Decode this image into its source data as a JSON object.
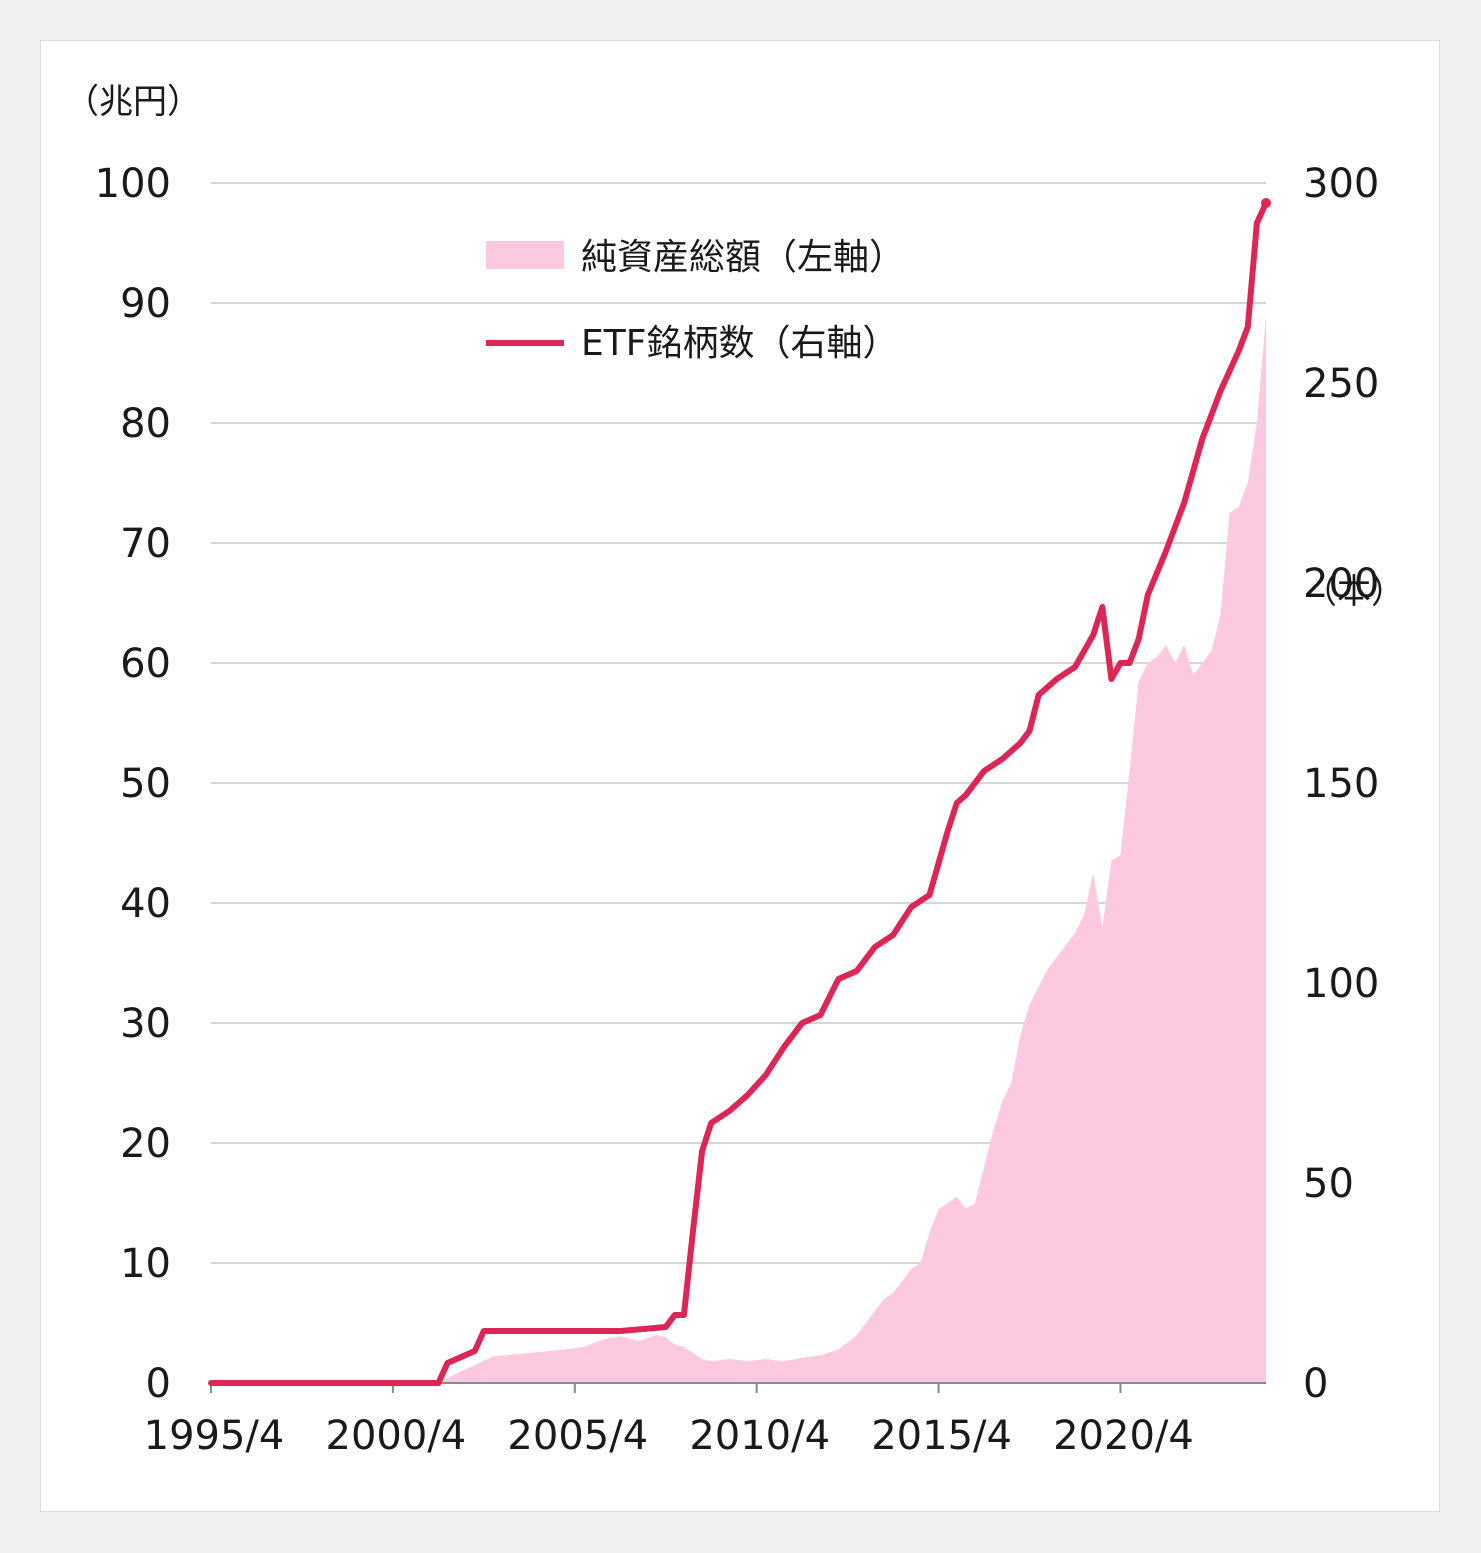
{
  "chart_data": {
    "type": "area+line",
    "title": "",
    "left_axis": {
      "unit_label": "（兆円）",
      "ylim": [
        0,
        100
      ],
      "ticks": [
        "0",
        "10",
        "20",
        "30",
        "40",
        "50",
        "60",
        "70",
        "80",
        "90",
        "100"
      ]
    },
    "right_axis": {
      "unit_label": "（本）",
      "ylim": [
        0,
        300
      ],
      "ticks": [
        "0",
        "50",
        "100",
        "150",
        "200",
        "250",
        "300"
      ]
    },
    "x_axis": {
      "ticks": [
        "1995/4",
        "2000/4",
        "2005/4",
        "2010/4",
        "2015/4",
        "2020/4"
      ]
    },
    "grid": "horizontal",
    "legend": {
      "placement": "top-center",
      "items": [
        {
          "label": "純資産総額（左軸）",
          "style": "area",
          "color": "#fcc9df"
        },
        {
          "label": "ETF銘柄数（右軸）",
          "style": "line",
          "color": "#dc2656"
        }
      ]
    },
    "series": [
      {
        "name": "純資産総額（左軸）",
        "axis": "left",
        "color": "#fcc9df",
        "x": [
          1995.25,
          2001.0,
          2001.4,
          2001.75,
          2002.0,
          2002.5,
          2003.0,
          2004.0,
          2005.0,
          2005.5,
          2006.0,
          2006.5,
          2007.0,
          2007.5,
          2007.75,
          2008.0,
          2008.25,
          2008.5,
          2008.75,
          2009.0,
          2009.5,
          2010.0,
          2010.5,
          2011.0,
          2011.5,
          2012.0,
          2012.5,
          2012.8,
          2013.0,
          2013.25,
          2013.5,
          2013.75,
          2014.0,
          2014.25,
          2014.5,
          2014.75,
          2015.0,
          2015.25,
          2015.5,
          2015.75,
          2016.0,
          2016.25,
          2016.5,
          2016.75,
          2017.0,
          2017.25,
          2017.5,
          2017.75,
          2018.0,
          2018.25,
          2018.5,
          2018.75,
          2019.0,
          2019.25,
          2019.5,
          2019.75,
          2020.0,
          2020.25,
          2020.5,
          2020.75,
          2021.0,
          2021.25,
          2021.5,
          2021.75,
          2022.0,
          2022.25,
          2022.5,
          2022.75,
          2023.0,
          2023.25,
          2023.5,
          2023.75,
          2024.0,
          2024.25
        ],
        "values": [
          0,
          0,
          0.1,
          0.4,
          0.8,
          1.5,
          2.2,
          2.5,
          2.8,
          3.0,
          3.6,
          3.9,
          3.5,
          4.0,
          3.8,
          3.2,
          3.0,
          2.5,
          2.0,
          1.8,
          2.0,
          1.8,
          2.0,
          1.8,
          2.1,
          2.3,
          2.8,
          3.5,
          4.0,
          5.0,
          6.0,
          7.0,
          7.5,
          8.5,
          9.5,
          10.0,
          12.5,
          14.5,
          15.0,
          15.5,
          14.5,
          15.0,
          18.0,
          21.0,
          23.5,
          25.0,
          29.0,
          31.5,
          33.0,
          34.5,
          35.5,
          36.5,
          37.5,
          39.0,
          42.5,
          38.0,
          43.5,
          44.0,
          51.0,
          58.5,
          60.0,
          60.5,
          61.5,
          60.0,
          61.5,
          59.0,
          60.0,
          61.0,
          64.0,
          72.5,
          73.0,
          75.0,
          80.0,
          89.0
        ]
      },
      {
        "name": "ETF銘柄数（右軸）",
        "axis": "right",
        "color": "#dc2656",
        "x": [
          1995.25,
          2001.5,
          2001.75,
          2002.25,
          2002.5,
          2002.75,
          2003.5,
          2005.0,
          2006.5,
          2007.75,
          2008.0,
          2008.25,
          2008.5,
          2008.75,
          2009.0,
          2009.5,
          2010.0,
          2010.5,
          2011.0,
          2011.5,
          2012.0,
          2012.5,
          2013.0,
          2013.5,
          2014.0,
          2014.5,
          2015.0,
          2015.25,
          2015.5,
          2015.75,
          2016.0,
          2016.5,
          2017.0,
          2017.5,
          2017.75,
          2018.0,
          2018.5,
          2019.0,
          2019.5,
          2019.75,
          2020.0,
          2020.25,
          2020.5,
          2020.75,
          2021.0,
          2021.5,
          2022.0,
          2022.5,
          2023.0,
          2023.5,
          2023.75,
          2024.0,
          2024.25
        ],
        "values": [
          0,
          0,
          5,
          7,
          8,
          13,
          13,
          13,
          13,
          14,
          17,
          17,
          38,
          58,
          65,
          68,
          72,
          77,
          84,
          90,
          92,
          101,
          103,
          109,
          112,
          119,
          122,
          130,
          138,
          145,
          147,
          153,
          156,
          160,
          163,
          172,
          176,
          179,
          187,
          194,
          176,
          180,
          180,
          186,
          197,
          208,
          220,
          236,
          248,
          258,
          264,
          290,
          295
        ]
      }
    ]
  }
}
